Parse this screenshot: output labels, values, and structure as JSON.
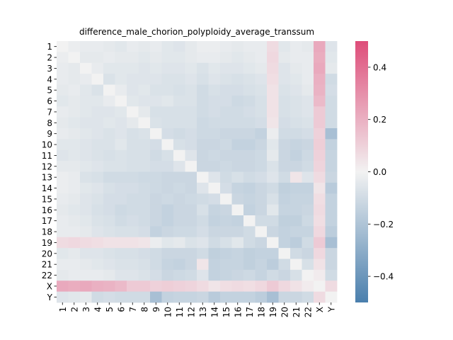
{
  "chart_data": {
    "type": "heatmap",
    "title": "difference_male_chorion_polyploidy_average_transsum",
    "xlabel": "",
    "ylabel": "",
    "labels": [
      "1",
      "2",
      "3",
      "4",
      "5",
      "6",
      "7",
      "8",
      "9",
      "10",
      "11",
      "12",
      "13",
      "14",
      "15",
      "16",
      "17",
      "18",
      "19",
      "20",
      "21",
      "22",
      "X",
      "Y"
    ],
    "colorbar": {
      "vmin": -0.5,
      "vmax": 0.5,
      "ticks": [
        -0.4,
        -0.2,
        0.0,
        0.2,
        0.4
      ],
      "tick_labels": [
        "−0.4",
        "−0.2",
        "0.0",
        "0.2",
        "0.4"
      ],
      "low_color": "#4a7fad",
      "mid_color": "#f2f2f2",
      "high_color": "#de4d79"
    },
    "values": [
      [
        0,
        -0.02,
        -0.03,
        -0.03,
        -0.04,
        -0.05,
        -0.03,
        -0.04,
        -0.03,
        -0.05,
        -0.06,
        -0.04,
        -0.02,
        -0.02,
        -0.03,
        -0.04,
        -0.03,
        -0.03,
        0.07,
        -0.05,
        -0.03,
        -0.04,
        0.22,
        -0.06
      ],
      [
        -0.02,
        0,
        -0.04,
        -0.04,
        -0.03,
        -0.04,
        -0.04,
        -0.05,
        -0.04,
        -0.05,
        -0.05,
        -0.04,
        -0.03,
        -0.03,
        -0.04,
        -0.05,
        -0.04,
        -0.03,
        0.08,
        -0.04,
        -0.03,
        -0.03,
        0.21,
        -0.05
      ],
      [
        -0.03,
        -0.04,
        0,
        -0.03,
        -0.05,
        -0.05,
        -0.05,
        -0.06,
        -0.05,
        -0.06,
        -0.06,
        -0.05,
        -0.07,
        -0.05,
        -0.06,
        -0.06,
        -0.05,
        -0.04,
        0.07,
        -0.06,
        -0.04,
        -0.03,
        0.22,
        -0.04
      ],
      [
        -0.03,
        -0.04,
        -0.03,
        0,
        -0.07,
        -0.05,
        -0.06,
        -0.06,
        -0.06,
        -0.07,
        -0.07,
        -0.06,
        -0.08,
        -0.06,
        -0.07,
        -0.08,
        -0.07,
        -0.06,
        0.06,
        -0.06,
        -0.05,
        -0.03,
        0.2,
        -0.1
      ],
      [
        -0.04,
        -0.03,
        -0.05,
        -0.07,
        0,
        -0.03,
        -0.06,
        -0.05,
        -0.07,
        -0.07,
        -0.08,
        -0.07,
        -0.1,
        -0.08,
        -0.09,
        -0.09,
        -0.08,
        -0.07,
        0.05,
        -0.07,
        -0.06,
        -0.04,
        0.19,
        -0.09
      ],
      [
        -0.05,
        -0.04,
        -0.05,
        -0.05,
        -0.03,
        0,
        -0.05,
        -0.06,
        -0.06,
        -0.05,
        -0.07,
        -0.07,
        -0.1,
        -0.09,
        -0.09,
        -0.11,
        -0.1,
        -0.08,
        0.05,
        -0.08,
        -0.07,
        -0.06,
        0.17,
        -0.1
      ],
      [
        -0.03,
        -0.04,
        -0.05,
        -0.06,
        -0.06,
        -0.05,
        0,
        -0.04,
        -0.08,
        -0.08,
        -0.08,
        -0.08,
        -0.1,
        -0.09,
        -0.1,
        -0.1,
        -0.09,
        -0.08,
        0.05,
        -0.08,
        -0.07,
        -0.06,
        0.12,
        -0.1
      ],
      [
        -0.04,
        -0.05,
        -0.06,
        -0.06,
        -0.05,
        -0.06,
        -0.04,
        0,
        -0.07,
        -0.08,
        -0.08,
        -0.08,
        -0.11,
        -0.1,
        -0.1,
        -0.1,
        -0.1,
        -0.09,
        0.04,
        -0.09,
        -0.08,
        -0.07,
        0.12,
        -0.1
      ],
      [
        -0.03,
        -0.04,
        -0.05,
        -0.06,
        -0.07,
        -0.06,
        -0.08,
        -0.07,
        0,
        -0.09,
        -0.1,
        -0.09,
        -0.11,
        -0.11,
        -0.12,
        -0.12,
        -0.12,
        -0.14,
        -0.02,
        -0.1,
        -0.1,
        -0.09,
        0.1,
        -0.22
      ],
      [
        -0.05,
        -0.05,
        -0.06,
        -0.07,
        -0.07,
        -0.05,
        -0.08,
        -0.08,
        -0.09,
        0,
        -0.08,
        -0.09,
        -0.12,
        -0.12,
        -0.11,
        -0.14,
        -0.14,
        -0.12,
        -0.05,
        -0.12,
        -0.13,
        -0.12,
        0.11,
        -0.14
      ],
      [
        -0.06,
        -0.05,
        -0.06,
        -0.07,
        -0.08,
        -0.07,
        -0.08,
        -0.08,
        -0.1,
        -0.08,
        0,
        -0.06,
        -0.12,
        -0.11,
        -0.12,
        -0.12,
        -0.12,
        -0.11,
        -0.04,
        -0.12,
        -0.14,
        -0.11,
        0.1,
        -0.13
      ],
      [
        -0.04,
        -0.04,
        -0.05,
        -0.06,
        -0.07,
        -0.07,
        -0.08,
        -0.08,
        -0.09,
        -0.09,
        -0.06,
        0,
        -0.12,
        -0.12,
        -0.11,
        -0.12,
        -0.12,
        -0.11,
        -0.07,
        -0.12,
        -0.12,
        -0.1,
        0.09,
        -0.13
      ],
      [
        -0.02,
        -0.03,
        -0.07,
        -0.08,
        -0.1,
        -0.1,
        -0.1,
        -0.11,
        -0.11,
        -0.12,
        -0.12,
        -0.12,
        0,
        -0.06,
        -0.1,
        -0.08,
        -0.1,
        -0.09,
        -0.06,
        -0.1,
        0.04,
        -0.06,
        0.07,
        -0.12
      ],
      [
        -0.02,
        -0.03,
        -0.05,
        -0.06,
        -0.08,
        -0.09,
        -0.09,
        -0.1,
        -0.11,
        -0.12,
        -0.11,
        -0.12,
        -0.06,
        0,
        -0.09,
        -0.13,
        -0.14,
        -0.12,
        -0.1,
        -0.15,
        -0.14,
        -0.14,
        0.04,
        -0.17
      ],
      [
        -0.03,
        -0.04,
        -0.06,
        -0.07,
        -0.09,
        -0.09,
        -0.1,
        -0.1,
        -0.12,
        -0.11,
        -0.12,
        -0.11,
        -0.1,
        -0.09,
        0,
        -0.12,
        -0.13,
        -0.12,
        -0.08,
        -0.14,
        -0.13,
        -0.13,
        0.06,
        -0.14
      ],
      [
        -0.04,
        -0.05,
        -0.06,
        -0.08,
        -0.09,
        -0.11,
        -0.1,
        -0.1,
        -0.12,
        -0.14,
        -0.12,
        -0.12,
        -0.08,
        -0.13,
        -0.12,
        0,
        -0.14,
        -0.12,
        -0.05,
        -0.13,
        -0.13,
        -0.12,
        0.07,
        -0.14
      ],
      [
        -0.03,
        -0.04,
        -0.05,
        -0.07,
        -0.08,
        -0.1,
        -0.09,
        -0.1,
        -0.12,
        -0.14,
        -0.12,
        -0.12,
        -0.1,
        -0.14,
        -0.13,
        -0.14,
        0,
        -0.1,
        -0.1,
        -0.15,
        -0.15,
        -0.11,
        0.06,
        -0.14
      ],
      [
        -0.03,
        -0.03,
        -0.04,
        -0.06,
        -0.07,
        -0.08,
        -0.08,
        -0.09,
        -0.14,
        -0.12,
        -0.11,
        -0.11,
        -0.09,
        -0.12,
        -0.12,
        -0.12,
        -0.1,
        0,
        -0.12,
        -0.14,
        -0.13,
        -0.13,
        0.08,
        -0.16
      ],
      [
        0.07,
        0.08,
        0.07,
        0.06,
        0.05,
        0.05,
        0.05,
        0.04,
        -0.02,
        -0.05,
        -0.04,
        -0.07,
        -0.06,
        -0.1,
        -0.08,
        -0.05,
        -0.1,
        -0.12,
        0,
        -0.14,
        -0.16,
        -0.1,
        0.12,
        -0.22
      ],
      [
        -0.05,
        -0.04,
        -0.06,
        -0.06,
        -0.07,
        -0.08,
        -0.08,
        -0.09,
        -0.1,
        -0.12,
        -0.12,
        -0.12,
        -0.1,
        -0.15,
        -0.14,
        -0.13,
        -0.15,
        -0.14,
        -0.14,
        0,
        -0.1,
        -0.12,
        0.08,
        -0.12
      ],
      [
        -0.03,
        -0.03,
        -0.04,
        -0.05,
        -0.06,
        -0.07,
        -0.07,
        -0.08,
        -0.1,
        -0.13,
        -0.14,
        -0.12,
        0.04,
        -0.14,
        -0.13,
        -0.13,
        -0.15,
        -0.13,
        -0.16,
        -0.1,
        0,
        -0.08,
        0.05,
        -0.12
      ],
      [
        -0.04,
        -0.03,
        -0.03,
        -0.03,
        -0.04,
        -0.06,
        -0.06,
        -0.07,
        -0.09,
        -0.12,
        -0.11,
        -0.1,
        -0.06,
        -0.14,
        -0.13,
        -0.12,
        -0.11,
        -0.13,
        -0.1,
        -0.12,
        -0.08,
        0,
        0.02,
        -0.1
      ],
      [
        0.22,
        0.21,
        0.22,
        0.2,
        0.19,
        0.17,
        0.12,
        0.12,
        0.1,
        0.11,
        0.1,
        0.09,
        0.07,
        0.04,
        0.06,
        0.07,
        0.06,
        0.08,
        0.12,
        0.08,
        0.05,
        0.02,
        0,
        0.07
      ],
      [
        -0.06,
        -0.05,
        -0.04,
        -0.1,
        -0.09,
        -0.1,
        -0.1,
        -0.1,
        -0.22,
        -0.14,
        -0.13,
        -0.13,
        -0.12,
        -0.17,
        -0.14,
        -0.14,
        -0.14,
        -0.16,
        -0.22,
        -0.12,
        -0.12,
        -0.1,
        0.07,
        0
      ]
    ]
  }
}
